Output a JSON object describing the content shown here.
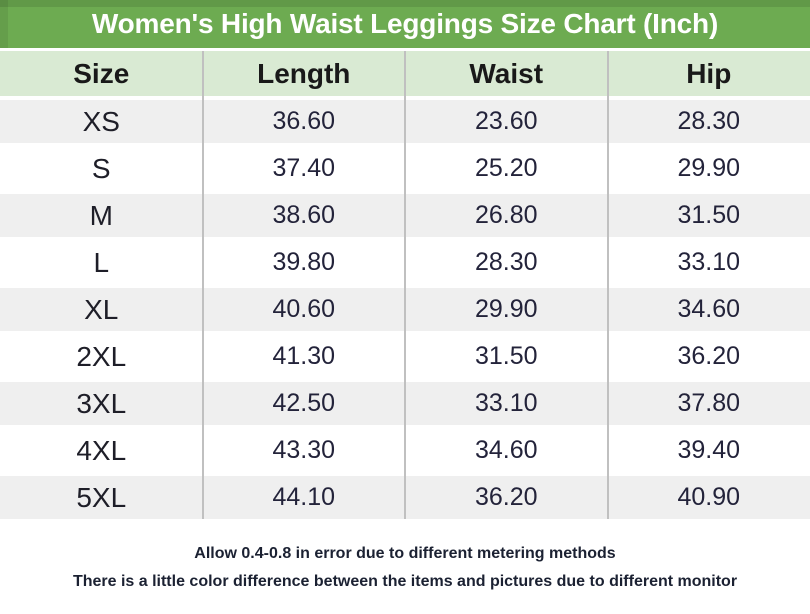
{
  "title": "Women's High Waist Leggings Size Chart (Inch)",
  "chart_data": {
    "type": "table",
    "title": "Women's High Waist Leggings Size Chart (Inch)",
    "unit": "inch",
    "columns": [
      "Size",
      "Length",
      "Waist",
      "Hip"
    ],
    "rows": [
      [
        "XS",
        "36.60",
        "23.60",
        "28.30"
      ],
      [
        "S",
        "37.40",
        "25.20",
        "29.90"
      ],
      [
        "M",
        "38.60",
        "26.80",
        "31.50"
      ],
      [
        "L",
        "39.80",
        "28.30",
        "33.10"
      ],
      [
        "XL",
        "40.60",
        "29.90",
        "34.60"
      ],
      [
        "2XL",
        "41.30",
        "31.50",
        "36.20"
      ],
      [
        "3XL",
        "42.50",
        "33.10",
        "37.80"
      ],
      [
        "4XL",
        "43.30",
        "34.60",
        "39.40"
      ],
      [
        "5XL",
        "44.10",
        "36.20",
        "40.90"
      ]
    ],
    "notes": [
      "Allow 0.4-0.8 in error due to different metering methods",
      "There is a little color difference between the items and pictures due to different monitor"
    ],
    "layout_hints": {
      "row_striping": "odd rows gray, even rows white",
      "grid": "vertical column dividers only"
    }
  },
  "colors": {
    "title_bar_green": "#6dab51",
    "title_bar_edge_green": "#5c9843",
    "header_green": "#d9ead3",
    "row_alt_gray": "#efefef",
    "row_white": "#ffffff",
    "divider_gray": "#c0c0c0",
    "title_text": "#ffffff",
    "header_text": "#191919",
    "size_text": "#1e1e28",
    "body_text": "#23233a",
    "footer_text": "#1b2132"
  }
}
